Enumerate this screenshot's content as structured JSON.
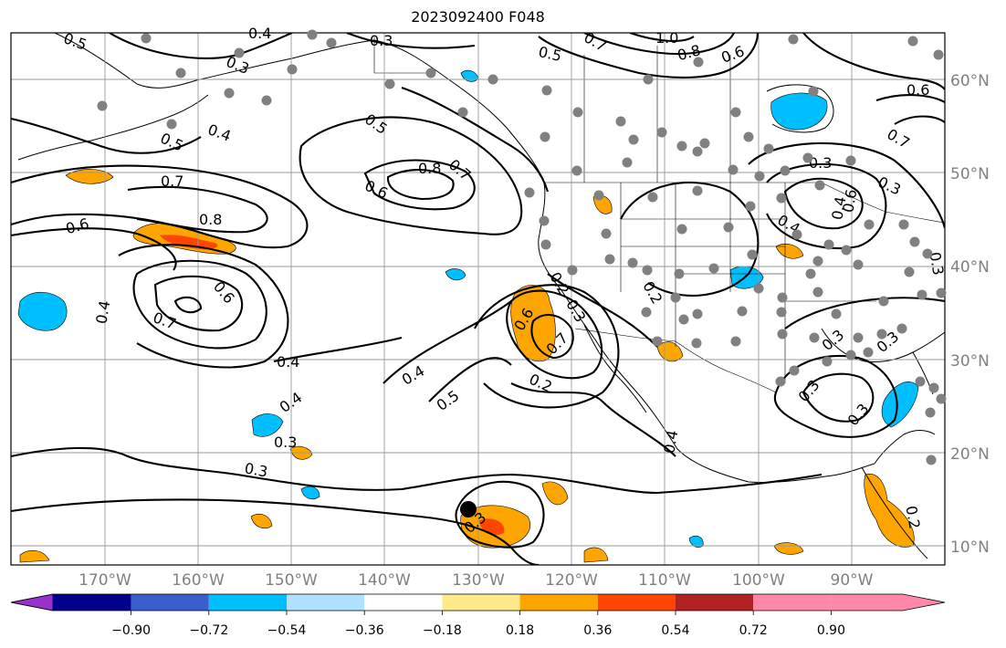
{
  "title": "2023092400 F048",
  "lat_labels": [
    "60°N",
    "50°N",
    "40°N",
    "30°N",
    "20°N",
    "10°N"
  ],
  "lon_labels": [
    "170°W",
    "160°W",
    "150°W",
    "140°W",
    "130°W",
    "120°W",
    "110°W",
    "100°W",
    "90°W"
  ],
  "colorbar": {
    "tick_labels": [
      "−0.90",
      "−0.72",
      "−0.54",
      "−0.36",
      "−0.18",
      "0.18",
      "0.36",
      "0.54",
      "0.72",
      "0.90"
    ],
    "colors": [
      "#9932CC",
      "#00008B",
      "#3A5FCD",
      "#00BFFF",
      "#B0E2FF",
      "#FFFFFF",
      "#FFE98A",
      "#FFA500",
      "#FF4500",
      "#B22222",
      "#FF88AA"
    ]
  },
  "contour_labels": [
    "0.5",
    "0.4",
    "0.3",
    "0.5",
    "0.7",
    "1.0",
    "0.8",
    "0.6",
    "0.6",
    "0.3",
    "0.4",
    "0.5",
    "0.5",
    "0.8",
    "0.7",
    "0.6",
    "0.7",
    "0.8",
    "0.6",
    "0.6",
    "0.7",
    "0.4",
    "0.4",
    "0.4",
    "0.2",
    "0.3",
    "0.6",
    "0.7",
    "0.2",
    "0.5",
    "0.2",
    "0.4",
    "0.3",
    "0.3",
    "0.4",
    "0.3",
    "0.3",
    "0.3",
    "0.3",
    "0.4",
    "0.3",
    "0.4",
    "0.7",
    "0.6",
    "0.3",
    "0.3",
    "0.2",
    "0.3"
  ]
}
